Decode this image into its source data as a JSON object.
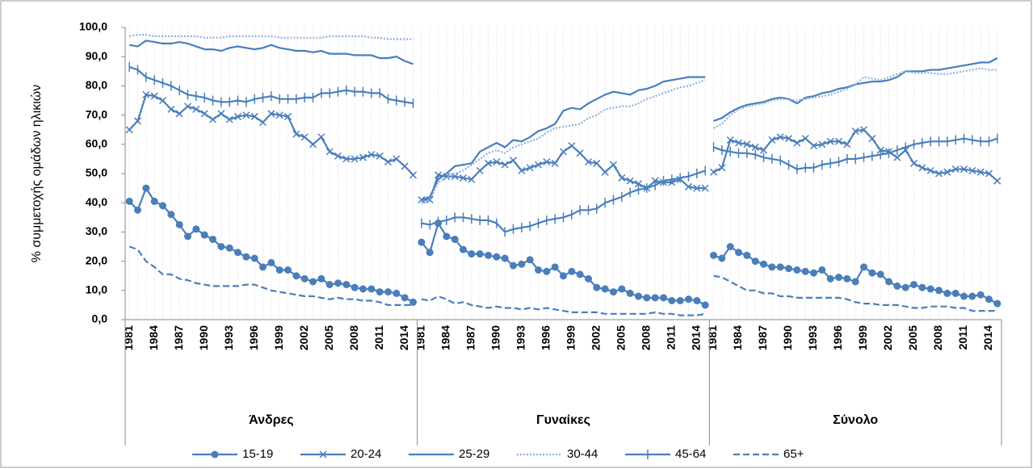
{
  "chart_data": {
    "type": "line",
    "ylabel": "% συμμετοχής ομάδων ηλικιών",
    "ylim": [
      0,
      100
    ],
    "yticks": [
      {
        "value": 0,
        "label": "0,0"
      },
      {
        "value": 10,
        "label": "10,0"
      },
      {
        "value": 20,
        "label": "20,0"
      },
      {
        "value": 30,
        "label": "30,0"
      },
      {
        "value": 40,
        "label": "40,0"
      },
      {
        "value": 50,
        "label": "50,0"
      },
      {
        "value": 60,
        "label": "60,0"
      },
      {
        "value": 70,
        "label": "70,0"
      },
      {
        "value": 80,
        "label": "80,0"
      },
      {
        "value": 90,
        "label": "90,0"
      },
      {
        "value": 100,
        "label": "100,0"
      }
    ],
    "xgrid": true,
    "legend": "bottom",
    "groups": [
      {
        "name": "Άνδρες",
        "categories": [
          "1981",
          null,
          null,
          "1984",
          null,
          null,
          "1987",
          null,
          null,
          "1990",
          null,
          null,
          "1993",
          null,
          null,
          "1996",
          null,
          null,
          "1999",
          null,
          null,
          "2002",
          null,
          null,
          "2005",
          null,
          null,
          "2008",
          null,
          null,
          "2011",
          null,
          null,
          "2014",
          null
        ]
      },
      {
        "name": "Γυναίκες",
        "categories": [
          "1981",
          null,
          null,
          "1984",
          null,
          null,
          "1987",
          null,
          null,
          "1990",
          null,
          null,
          "1993",
          null,
          null,
          "1996",
          null,
          null,
          "1999",
          null,
          null,
          "2002",
          null,
          null,
          "2005",
          null,
          null,
          "2008",
          null,
          null,
          "2011",
          null,
          null,
          "2014",
          null
        ]
      },
      {
        "name": "Σύνολο",
        "categories": [
          "1981",
          null,
          null,
          "1984",
          null,
          null,
          "1987",
          null,
          null,
          "1990",
          null,
          null,
          "1993",
          null,
          null,
          "1996",
          null,
          null,
          "1999",
          null,
          null,
          "2002",
          null,
          null,
          "2005",
          null,
          null,
          "2008",
          null,
          null,
          "2011",
          null,
          null,
          "2014",
          null
        ]
      }
    ],
    "series": [
      {
        "name": "15-19",
        "color": "#4a7ebb",
        "marker": "circle",
        "dash": "solid",
        "values": [
          [
            40.5,
            37.5,
            45,
            40.5,
            39,
            36,
            32.5,
            28.5,
            31,
            29,
            27.5,
            25,
            24.5,
            23,
            21.5,
            21,
            18,
            19.5,
            17,
            17,
            15,
            14,
            13,
            14,
            12,
            12.5,
            12,
            11,
            10.5,
            10.5,
            9.5,
            9.5,
            9,
            7.5,
            6
          ],
          [
            26.5,
            23,
            33,
            28.5,
            27.5,
            24,
            22.5,
            22.5,
            22,
            21.5,
            21,
            18.5,
            19,
            20.5,
            17,
            16.5,
            18,
            15,
            16.5,
            15.5,
            14,
            11,
            10.5,
            9.5,
            10.5,
            9,
            8,
            7.5,
            7.5,
            7.5,
            6.5,
            6.5,
            7,
            6.5,
            5
          ],
          [
            22,
            21,
            25,
            23,
            22,
            20,
            19,
            18,
            18,
            17.5,
            17,
            16.5,
            16,
            17,
            14,
            14.5,
            14,
            13,
            18,
            16,
            15.5,
            13,
            11.5,
            11,
            12,
            11,
            10.5,
            10,
            9,
            9,
            8,
            8,
            8.5,
            7,
            5.5
          ]
        ]
      },
      {
        "name": "20-24",
        "color": "#4a7ebb",
        "marker": "x",
        "dash": "solid",
        "values": [
          [
            65,
            68,
            77,
            76.5,
            75,
            72,
            70.5,
            73,
            72,
            70.5,
            68.5,
            70.5,
            68.5,
            69.5,
            70,
            69.5,
            67.5,
            70.5,
            70,
            69.5,
            63.5,
            62.5,
            60,
            62.5,
            57.5,
            56,
            55,
            55,
            55.5,
            56.5,
            56,
            54,
            55,
            52.5,
            49.5
          ],
          [
            41,
            41,
            49.5,
            49,
            49,
            48.5,
            48,
            51,
            53.5,
            54,
            53,
            54.5,
            51,
            52,
            53,
            54,
            53.5,
            57.5,
            59.5,
            57,
            54,
            53.5,
            50.5,
            53,
            48.5,
            47.5,
            46.5,
            45,
            47.5,
            47,
            47,
            48,
            45.5,
            45,
            45
          ],
          [
            50.5,
            52,
            61.5,
            60.5,
            60,
            59,
            58,
            61.5,
            62.5,
            62,
            60.5,
            62,
            59.5,
            60,
            61,
            61,
            60,
            64.5,
            65,
            62,
            58,
            57.5,
            55.5,
            58,
            53.5,
            52,
            51,
            50,
            50.5,
            51.5,
            51.5,
            51,
            50.5,
            50,
            47.5
          ]
        ]
      },
      {
        "name": "25-29",
        "color": "#4a7ebb",
        "marker": "none",
        "dash": "solid",
        "values": [
          [
            94,
            93.5,
            95.5,
            95,
            94.5,
            94.5,
            95,
            94.5,
            93.5,
            92.5,
            92.5,
            92,
            93,
            93.5,
            93,
            92.5,
            93,
            94,
            93,
            92.5,
            92,
            92,
            91.5,
            92,
            91,
            91,
            91,
            90.5,
            90.5,
            90.5,
            89.5,
            89.5,
            90,
            88.5,
            87.5
          ],
          [
            41,
            42,
            48,
            50,
            52.5,
            53,
            53.5,
            57.5,
            59,
            60.5,
            59,
            61.5,
            61,
            62.5,
            64.5,
            65.5,
            67,
            71.5,
            72.5,
            72,
            74,
            75.5,
            77,
            78,
            77.5,
            77,
            78.5,
            79,
            80,
            81.5,
            82,
            82.5,
            83,
            83,
            83
          ],
          [
            68,
            69,
            71,
            72.5,
            73.5,
            74,
            74.5,
            75.5,
            76,
            75.5,
            74,
            76,
            76.5,
            77.5,
            78,
            79,
            79.5,
            80.5,
            81,
            81.5,
            81.5,
            82,
            83,
            85,
            85,
            85,
            85.5,
            85.5,
            86,
            86.5,
            87,
            87.5,
            88,
            88,
            89.5
          ]
        ]
      },
      {
        "name": "30-44",
        "color": "#8fb0dc",
        "marker": "none",
        "dash": "dotted",
        "values": [
          [
            97,
            97.5,
            97.5,
            97,
            97,
            97,
            97,
            97,
            97,
            96.5,
            96.5,
            96.5,
            97,
            97,
            97,
            97,
            97,
            97,
            96.5,
            96.5,
            96.5,
            96.5,
            96.5,
            96.5,
            97,
            97,
            97,
            97,
            97,
            96.5,
            96.5,
            96,
            96,
            96,
            96
          ],
          [
            40,
            41,
            47,
            48.5,
            50,
            51,
            53,
            55,
            57,
            58,
            57,
            59,
            60,
            61,
            62,
            64,
            65.5,
            66,
            66.5,
            67,
            69,
            70,
            72,
            72.5,
            73,
            73,
            74,
            75.5,
            76.5,
            77.5,
            78.5,
            79.5,
            80,
            81,
            82
          ],
          [
            65.5,
            67,
            70,
            72,
            73,
            73.5,
            74,
            75,
            75.5,
            75.5,
            75,
            75.5,
            76,
            76.5,
            77,
            78,
            79,
            80.5,
            83,
            82.5,
            82,
            83,
            84,
            85,
            84.5,
            84.5,
            84.5,
            84,
            84,
            84.5,
            85,
            85.5,
            86,
            85.5,
            85.5
          ]
        ]
      },
      {
        "name": "45-64",
        "color": "#4a7ebb",
        "marker": "plus",
        "dash": "solid",
        "values": [
          [
            86.5,
            85.5,
            83,
            82,
            81,
            80,
            78.5,
            77,
            76.5,
            76,
            75,
            74.5,
            74.5,
            75,
            74.5,
            75.5,
            76,
            76.5,
            75.5,
            75.5,
            75.5,
            76,
            76,
            77.5,
            77.5,
            78,
            78.5,
            78,
            78,
            77.5,
            77.5,
            75.5,
            75,
            74.5,
            74
          ],
          [
            33,
            32.5,
            33.5,
            34,
            35,
            35,
            34.5,
            34,
            34,
            33,
            30,
            31,
            31.5,
            32,
            33,
            34,
            34.5,
            35,
            36,
            37.5,
            37.5,
            38,
            40,
            41,
            42,
            43.5,
            44.5,
            45,
            46,
            47.5,
            48,
            48.5,
            49,
            50,
            51
          ],
          [
            59,
            58,
            57.5,
            57,
            57,
            56.5,
            55.5,
            55,
            54.5,
            53,
            51.5,
            52,
            52,
            53,
            53.5,
            54,
            55,
            55,
            55.5,
            56,
            56.5,
            57,
            58,
            59,
            60,
            60.5,
            61,
            61,
            61,
            61.5,
            62,
            61.5,
            61,
            61,
            62
          ]
        ]
      },
      {
        "name": "65+",
        "color": "#4a7ebb",
        "marker": "none",
        "dash": "dashed",
        "values": [
          [
            25,
            24,
            20,
            18,
            15.5,
            15.5,
            14,
            13.5,
            12.5,
            12,
            11.5,
            11.5,
            11.5,
            11.5,
            12,
            12,
            11,
            10,
            9.5,
            9,
            8.5,
            8,
            8,
            7.5,
            7,
            7.5,
            7,
            7,
            6.5,
            6.5,
            6,
            5,
            5,
            5,
            5
          ],
          [
            7,
            6.5,
            8,
            7,
            5.5,
            6,
            5,
            4.5,
            4,
            4.5,
            4,
            4,
            3.5,
            4,
            3.5,
            4,
            3.5,
            3,
            2.5,
            2.5,
            2.5,
            2.5,
            2,
            2,
            2,
            2,
            2,
            2,
            2.5,
            2,
            2,
            1.5,
            1.5,
            1.5,
            2
          ],
          [
            15,
            14.5,
            13,
            11.5,
            10,
            10,
            9,
            9,
            8,
            8,
            7.5,
            7.5,
            7.5,
            7.5,
            7.5,
            7.5,
            7,
            6,
            5.5,
            5.5,
            5,
            5,
            5,
            4.5,
            4,
            4,
            4.5,
            4.5,
            4.5,
            4,
            4,
            3,
            3,
            3,
            3
          ]
        ]
      }
    ]
  }
}
